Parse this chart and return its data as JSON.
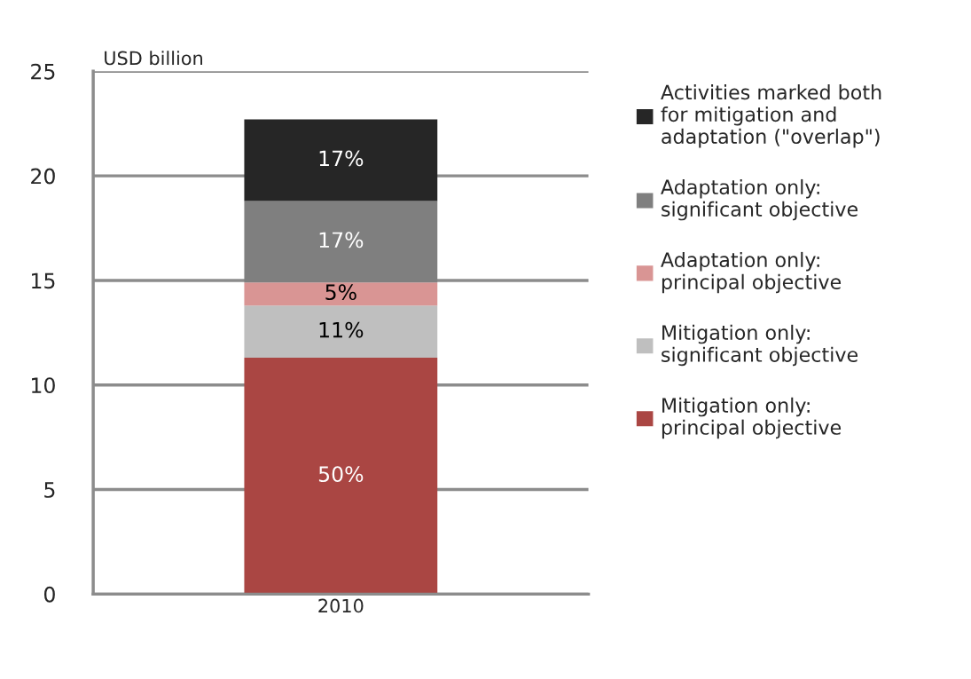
{
  "chart_data": {
    "type": "bar",
    "stacked": true,
    "ylabel": "USD billion",
    "categories": [
      "2010"
    ],
    "series": [
      {
        "name": "Mitigation only:\nprincipal objective",
        "color": "#aa4643",
        "values": [
          11.3
        ]
      },
      {
        "name": "Mitigation only:\nsignificant objective",
        "color": "#bfbfbf",
        "values": [
          2.5
        ]
      },
      {
        "name": "Adaptation only:\nprincipal objective",
        "color": "#d99594",
        "values": [
          1.1
        ]
      },
      {
        "name": "Adaptation only:\nsignificant objective",
        "color": "#7f7f7f",
        "values": [
          3.9
        ]
      },
      {
        "name": "Activities marked both\nfor mitigation and\nadaptation (\"overlap\")",
        "color": "#262626",
        "values": [
          3.9
        ]
      }
    ],
    "annotations": [
      "50%",
      "11%",
      "5%",
      "17%",
      "17%"
    ],
    "ylim": [
      0,
      25
    ],
    "yticks": [
      0,
      5,
      10,
      15,
      20,
      25
    ],
    "grid": "y",
    "legend": "right"
  }
}
